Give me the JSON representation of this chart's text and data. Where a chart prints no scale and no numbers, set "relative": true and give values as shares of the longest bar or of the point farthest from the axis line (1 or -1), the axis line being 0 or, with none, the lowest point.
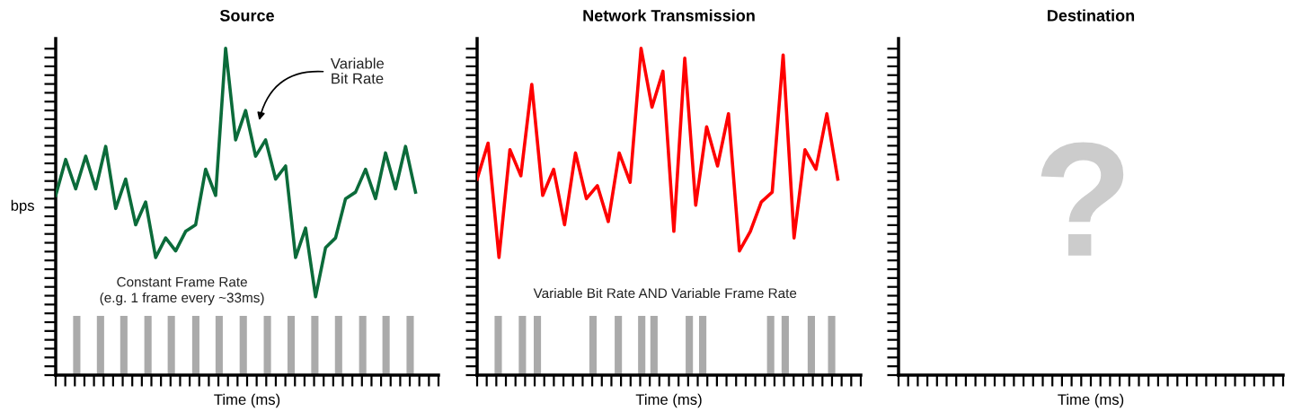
{
  "chart_data": [
    {
      "type": "line",
      "title": "Source",
      "xlabel": "Time (ms)",
      "ylabel": "bps",
      "relative": true,
      "tick_labels": false,
      "annotations": [
        "Variable\nBit Rate",
        "Constant Frame Rate\n(e.g. 1 frame every ~33ms)"
      ],
      "categories": [
        null,
        null,
        null,
        null,
        null,
        null,
        null,
        null,
        null,
        null,
        null,
        null,
        null,
        null,
        null,
        null,
        null,
        null,
        null,
        null,
        null,
        null,
        null,
        null,
        null,
        null,
        null,
        null,
        null,
        null,
        null,
        null,
        null,
        null,
        null,
        null,
        null
      ],
      "series": [
        {
          "color": "#0b6b3a",
          "values": [
            0.55,
            0.66,
            0.57,
            0.67,
            0.57,
            0.7,
            0.51,
            0.6,
            0.46,
            0.53,
            0.36,
            0.42,
            0.38,
            0.44,
            0.46,
            0.63,
            0.55,
            1,
            0.72,
            0.81,
            0.67,
            0.72,
            0.6,
            0.64,
            0.36,
            0.45,
            0.24,
            0.39,
            0.42,
            0.54,
            0.56,
            0.63,
            0.54,
            0.68,
            0.57,
            0.7,
            0.56
          ]
        }
      ]
    },
    {
      "type": "line",
      "title": "Network Transmission",
      "xlabel": "Time (ms)",
      "relative": true,
      "tick_labels": false,
      "annotations": [
        "Variable Bit Rate AND Variable Frame Rate"
      ],
      "categories": [
        null,
        null,
        null,
        null,
        null,
        null,
        null,
        null,
        null,
        null,
        null,
        null,
        null,
        null,
        null,
        null,
        null,
        null,
        null,
        null,
        null,
        null,
        null,
        null,
        null,
        null,
        null,
        null,
        null,
        null,
        null,
        null,
        null,
        null
      ],
      "series": [
        {
          "color": "#ff0000",
          "values": [
            0.6,
            0.71,
            0.36,
            0.69,
            0.61,
            0.89,
            0.55,
            0.63,
            0.46,
            0.68,
            0.54,
            0.58,
            0.47,
            0.68,
            0.59,
            1,
            0.82,
            0.93,
            0.44,
            0.97,
            0.52,
            0.76,
            0.64,
            0.8,
            0.38,
            0.44,
            0.53,
            0.56,
            0.98,
            0.42,
            0.69,
            0.63,
            0.8,
            0.6
          ]
        }
      ]
    },
    {
      "type": "other",
      "title": "Destination",
      "xlabel": "Time (ms)",
      "annotations": [
        "?"
      ]
    }
  ]
}
